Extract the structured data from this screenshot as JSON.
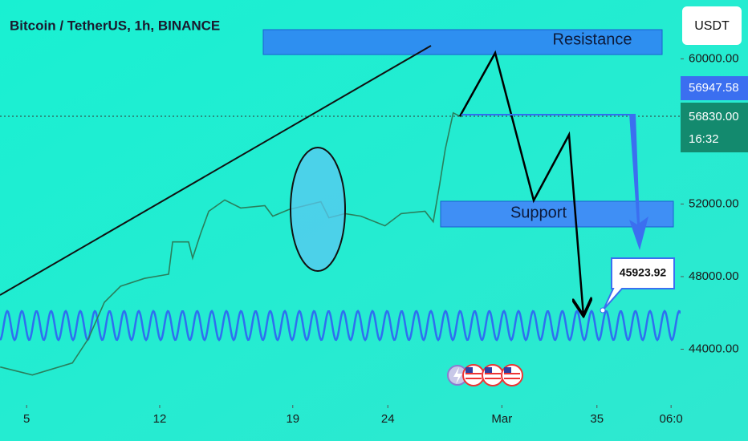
{
  "chart_data": {
    "type": "line",
    "title": "Bitcoin / TetherUS, 1h, BINANCE",
    "currency": "USDT",
    "annotations": {
      "resistance": "Resistance",
      "support": "Support",
      "target": "45923.92"
    },
    "price_labels": {
      "last": "56947.58",
      "current": "56830.00",
      "countdown": "16:32"
    },
    "x": [
      3.61,
      5.3,
      7.41,
      8.25,
      9.09,
      9.94,
      11.2,
      12.47,
      12.68,
      13.52,
      13.73,
      14.15,
      14.58,
      15.42,
      16.26,
      17.53,
      17.95,
      18.79,
      19.64,
      20.48,
      20.9,
      21.75,
      22.59,
      23.85,
      24.7,
      25.96,
      26.39,
      26.72,
      27.02,
      27.44,
      27.86
    ],
    "values": [
      43020,
      42580,
      43240,
      44580,
      46580,
      47470,
      47900,
      48130,
      49910,
      49910,
      49020,
      50360,
      51600,
      52220,
      51780,
      51910,
      51330,
      51690,
      51910,
      52130,
      51240,
      51470,
      51330,
      50800,
      51470,
      51600,
      51020,
      53020,
      55020,
      57020,
      56800
    ],
    "color": "#2a7f5c",
    "xlim": [
      3.6,
      39.4
    ],
    "ylim": [
      40930,
      63240
    ],
    "xticks": [
      5,
      12,
      19,
      24,
      {
        "value": 30,
        "label": "Mar"
      },
      35,
      {
        "value": 38.9,
        "label": "06:0"
      }
    ],
    "yticks": [
      {
        "value": 44000,
        "label": "44000.00"
      },
      {
        "value": 48000,
        "label": "48000.00"
      },
      {
        "value": 52000,
        "label": "52000.00"
      },
      {
        "value": 60000,
        "label": "60000.00"
      }
    ]
  }
}
